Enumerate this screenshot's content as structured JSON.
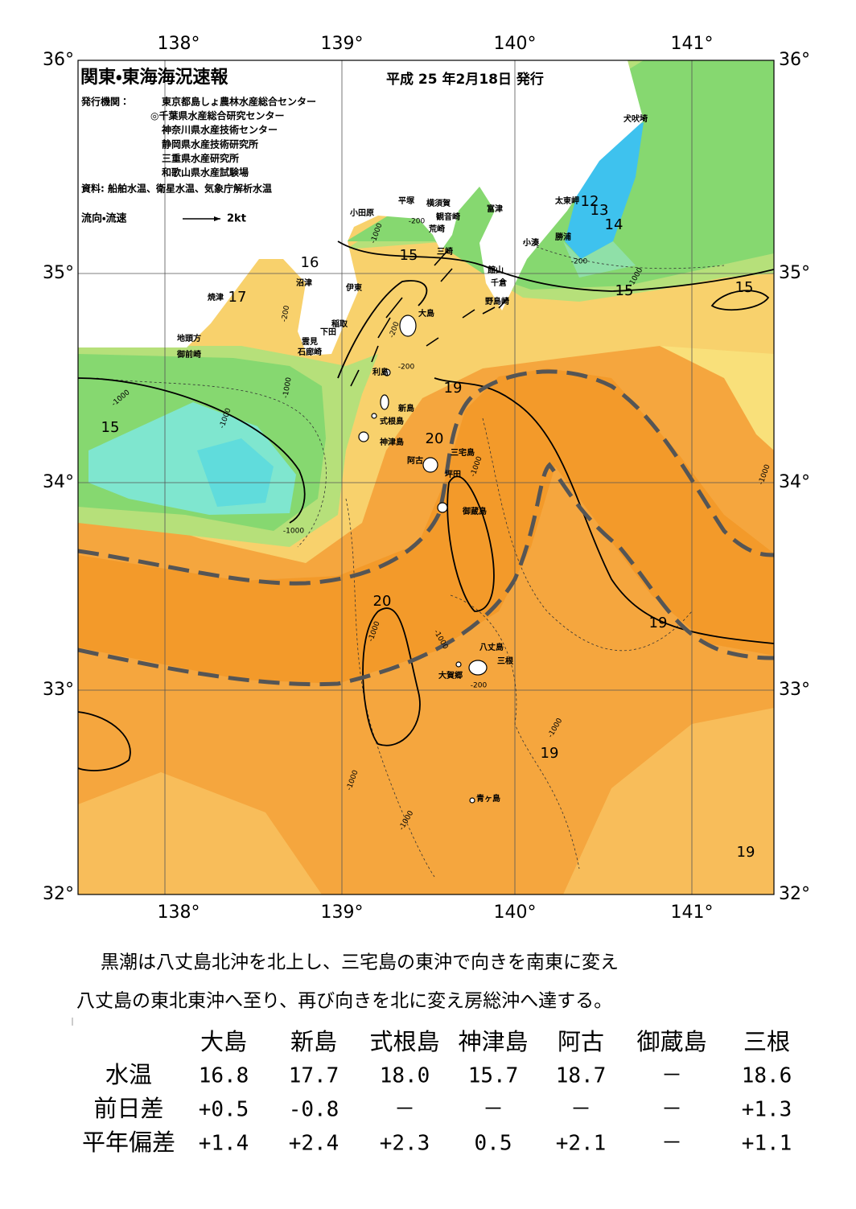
{
  "header": {
    "title": "関東・東海海況速報",
    "date": "平成 25 年2月18日 発行",
    "issuer_label": "発行機関：",
    "issuers": [
      "東京都島しょ農林水産総合センター",
      "◎千葉県水産総合研究センター",
      "神奈川県水産技術センター",
      "静岡県水産技術研究所",
      "三重県水産研究所",
      "和歌山県水産試験場"
    ],
    "source": "資料: 船舶水温、衛星水温、気象庁解析水温",
    "legend": "流向・流速",
    "legend_scale": "2kt"
  },
  "map": {
    "lon_labels": [
      "138°",
      "139°",
      "140°",
      "141°"
    ],
    "lat_labels": [
      "36°",
      "35°",
      "34°",
      "33°",
      "32°"
    ],
    "places": [
      "犬吠埼",
      "太東岬",
      "勝浦",
      "小湊",
      "富津",
      "横須賀",
      "平塚",
      "観音崎",
      "荒崎",
      "三崎",
      "小田原",
      "館山",
      "千倉",
      "野島崎",
      "沼津",
      "伊東",
      "焼津",
      "大島",
      "稲取",
      "下田",
      "雲見",
      "石廊崎",
      "地頭方",
      "御前崎",
      "利島",
      "新島",
      "式根島",
      "神津島",
      "三宅島",
      "阿古",
      "坪田",
      "御蔵島",
      "八丈島",
      "三根",
      "大賀郷",
      "青ヶ島"
    ],
    "contour_labels": [
      16,
      17,
      15,
      12,
      13,
      14,
      15,
      15,
      19,
      15,
      20,
      20,
      19,
      19,
      19
    ],
    "depth_labels": [
      -1000,
      -1000,
      -1000,
      -200,
      -200,
      -1000,
      -200,
      -1000,
      -200,
      -1000,
      -1000,
      -1000,
      -200,
      -1000,
      -1000,
      -1000,
      -1000,
      -200,
      -1000
    ]
  },
  "description": [
    "黒潮は八丈島北沖を北上し、三宅島の東沖で向きを南東に変え",
    "八丈島の東北東沖へ至り、再び向きを北に変え房総沖へ達する。"
  ],
  "table": {
    "columns": [
      "大島",
      "新島",
      "式根島",
      "神津島",
      "阿古",
      "御蔵島",
      "三根"
    ],
    "rows": [
      {
        "label": "水温",
        "cells": [
          "16.8",
          "17.7",
          "18.0",
          "15.7",
          "18.7",
          "－",
          "18.6"
        ]
      },
      {
        "label": "前日差",
        "cells": [
          "+0.5",
          "-0.8",
          "－",
          "－",
          "－",
          "－",
          "+1.3"
        ]
      },
      {
        "label": "平年偏差",
        "cells": [
          "+1.4",
          "+2.4",
          "+2.3",
          "0.5",
          "+2.1",
          "－",
          "+1.1"
        ]
      }
    ]
  }
}
